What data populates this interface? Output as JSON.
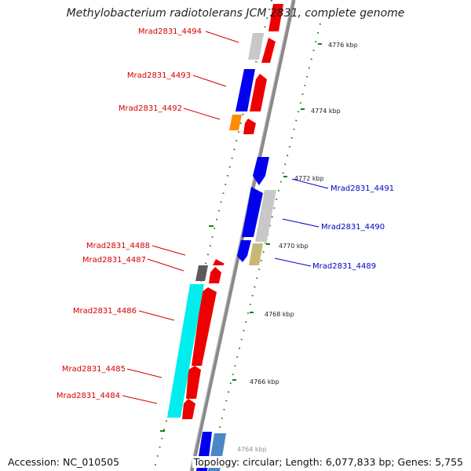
{
  "title": "Methylobacterium radiotolerans JCM 2831, complete genome",
  "accession": "Accession: NC_010505",
  "topology": "Topology: circular; Length: 6,077,833 bp; Genes: 5,755",
  "colors": {
    "forward_label": "#d40000",
    "reverse_label": "#0000c8",
    "tick": "#1a7a1a",
    "backbone": "#8a8a8a"
  },
  "kbp_labels": [
    "4776 kbp",
    "4774 kbp",
    "4772 kbp",
    "4770 kbp",
    "4768 kbp",
    "4766 kbp",
    "4764 kbp"
  ],
  "gene_labels": [
    {
      "name": "Mrad2831_4494",
      "strand": "forward"
    },
    {
      "name": "Mrad2831_4493",
      "strand": "forward"
    },
    {
      "name": "Mrad2831_4492",
      "strand": "forward"
    },
    {
      "name": "Mrad2831_4491",
      "strand": "reverse"
    },
    {
      "name": "Mrad2831_4490",
      "strand": "reverse"
    },
    {
      "name": "Mrad2831_4488",
      "strand": "forward"
    },
    {
      "name": "Mrad2831_4487",
      "strand": "forward"
    },
    {
      "name": "Mrad2831_4489",
      "strand": "reverse"
    },
    {
      "name": "Mrad2831_4486",
      "strand": "forward"
    },
    {
      "name": "Mrad2831_4485",
      "strand": "forward"
    },
    {
      "name": "Mrad2831_4484",
      "strand": "forward"
    }
  ]
}
